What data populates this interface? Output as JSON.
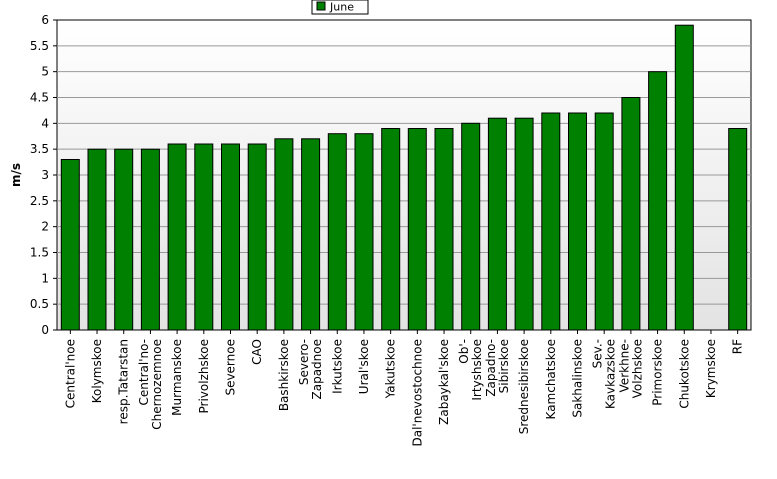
{
  "chart_data": {
    "type": "bar",
    "title": "",
    "xlabel": "",
    "ylabel": "m/s",
    "ylim": [
      0,
      6
    ],
    "yticks": [
      "0",
      "0.5",
      "1",
      "1.5",
      "2",
      "2.5",
      "3",
      "3.5",
      "4",
      "4.5",
      "5",
      "5.5",
      "6"
    ],
    "grid": true,
    "legend_position": "top-center",
    "categories": [
      "Central'noe",
      "Kolymskoe",
      "resp.Tatarstan",
      "Central'no-Chernozemnoe",
      "Murmanskoe",
      "Privolzhskoe",
      "Severnoe",
      "CAO",
      "Bashkirskoe",
      "Severo-Zapadnoe",
      "Irkutskoe",
      "Ural'skoe",
      "Yakutskoe",
      "Dal'nevostochnoe",
      "Zabaykal'skoe",
      "Ob'-Irtyshskoe",
      "Zapadno-Sibirskoe",
      "Srednesibirskoe",
      "Kamchatskoe",
      "Sakhalinskoe",
      "Sev.-Kavkazskoe",
      "Verkhne-Volzhskoe",
      "Primorskoe",
      "Chukotskoe",
      "Krymskoe",
      "RF"
    ],
    "series": [
      {
        "name": "June",
        "values": [
          3.3,
          3.5,
          3.5,
          3.5,
          3.6,
          3.6,
          3.6,
          3.6,
          3.7,
          3.7,
          3.8,
          3.8,
          3.9,
          3.9,
          3.9,
          4.0,
          4.1,
          4.1,
          4.2,
          4.2,
          4.2,
          4.5,
          5.0,
          5.9,
          null,
          3.9
        ]
      }
    ],
    "colors": {
      "bar": "#008000",
      "bar_edge": "#000000",
      "grid": "#999999",
      "plot_bg_top": "#ffffff",
      "plot_bg_bottom": "#e3e3e3"
    }
  }
}
